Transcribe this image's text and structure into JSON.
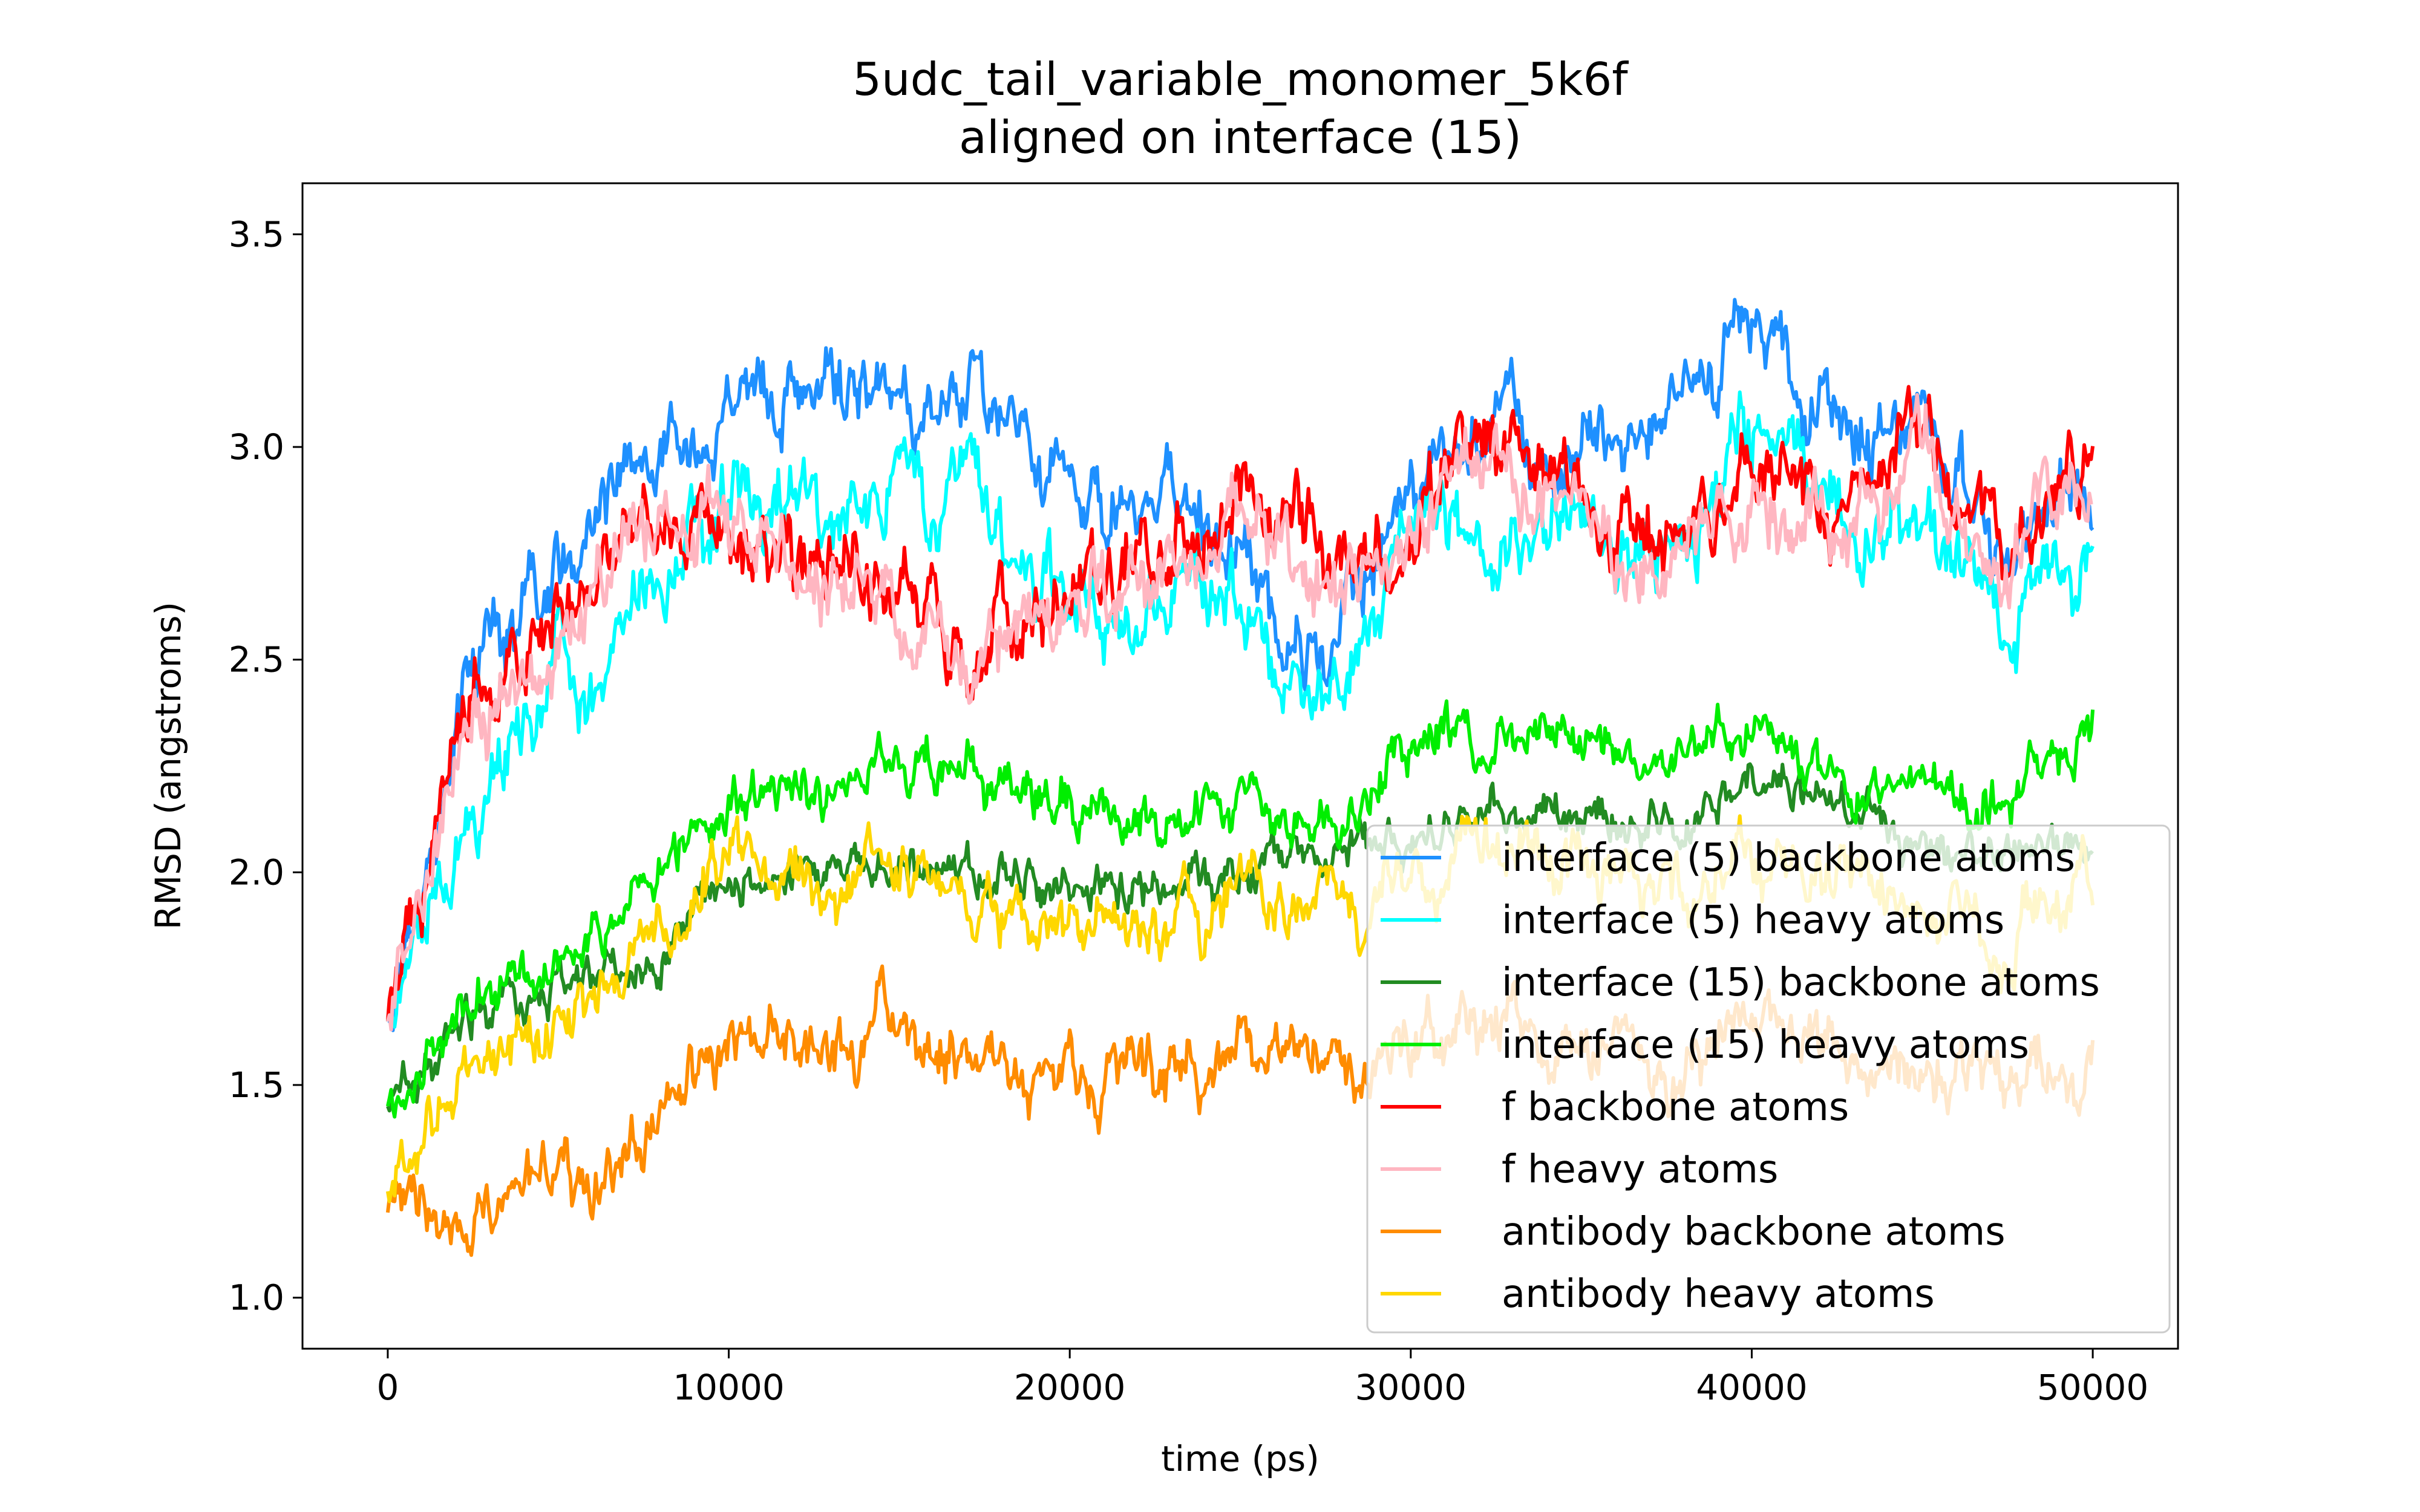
{
  "chart_data": {
    "type": "line",
    "title": [
      "5udc_tail_variable_monomer_5k6f",
      "aligned on interface (15)"
    ],
    "xlabel": "time (ps)",
    "ylabel": "RMSD (angstroms)",
    "xlim": [
      -2500,
      52500
    ],
    "ylim": [
      0.88,
      3.62
    ],
    "xticks": [
      0,
      10000,
      20000,
      30000,
      40000,
      50000
    ],
    "yticks": [
      1.0,
      1.5,
      2.0,
      2.5,
      3.0,
      3.5
    ],
    "ytick_labels": [
      "1.0",
      "1.5",
      "2.0",
      "2.5",
      "3.0",
      "3.5"
    ],
    "grid": false,
    "legend_position": "lower-right",
    "x": [
      0,
      2500,
      5000,
      7500,
      10000,
      12500,
      15000,
      17500,
      20000,
      22500,
      25000,
      27500,
      30000,
      32500,
      35000,
      37500,
      40000,
      42500,
      45000,
      47500,
      50000
    ],
    "series": [
      {
        "name": "interface (5) backbone atoms",
        "color": "#1E90FF",
        "noise": 0.09,
        "values": [
          1.65,
          2.5,
          2.7,
          2.95,
          3.15,
          3.1,
          3.1,
          3.15,
          2.95,
          2.85,
          2.75,
          2.45,
          2.95,
          3.05,
          3.0,
          3.05,
          3.3,
          3.05,
          3.0,
          2.8,
          2.9
        ]
      },
      {
        "name": "interface (5) heavy atoms",
        "color": "#00FFFF",
        "noise": 0.09,
        "values": [
          1.65,
          2.15,
          2.45,
          2.6,
          2.85,
          2.85,
          2.9,
          2.85,
          2.65,
          2.65,
          2.65,
          2.4,
          2.75,
          2.8,
          2.8,
          2.75,
          3.05,
          2.85,
          2.8,
          2.65,
          2.7
        ]
      },
      {
        "name": "interface (15) backbone atoms",
        "color": "#228B22",
        "noise": 0.05,
        "values": [
          1.45,
          1.65,
          1.72,
          1.8,
          2.0,
          2.02,
          2.05,
          2.0,
          1.98,
          1.95,
          2.0,
          2.05,
          2.1,
          2.15,
          2.1,
          2.1,
          2.25,
          2.15,
          2.05,
          2.05,
          2.1
        ]
      },
      {
        "name": "interface (15) heavy atoms",
        "color": "#00EE00",
        "noise": 0.06,
        "values": [
          1.45,
          1.72,
          1.82,
          1.95,
          2.2,
          2.2,
          2.25,
          2.2,
          2.15,
          2.1,
          2.15,
          2.15,
          2.25,
          2.35,
          2.3,
          2.25,
          2.35,
          2.2,
          2.2,
          2.15,
          2.35
        ]
      },
      {
        "name": "f backbone atoms",
        "color": "#FF0000",
        "noise": 0.09,
        "values": [
          1.65,
          2.45,
          2.55,
          2.85,
          2.85,
          2.75,
          2.65,
          2.55,
          2.65,
          2.75,
          2.9,
          2.75,
          2.8,
          3.0,
          2.85,
          2.75,
          2.9,
          2.85,
          3.05,
          2.75,
          2.95
        ]
      },
      {
        "name": "f heavy atoms",
        "color": "#FFB6C1",
        "noise": 0.09,
        "values": [
          1.65,
          2.4,
          2.5,
          2.8,
          2.8,
          2.7,
          2.6,
          2.5,
          2.6,
          2.7,
          2.85,
          2.7,
          2.75,
          2.95,
          2.8,
          2.7,
          2.85,
          2.8,
          3.0,
          2.7,
          2.9
        ]
      },
      {
        "name": "antibody backbone atoms",
        "color": "#FF8C00",
        "noise": 0.07,
        "values": [
          1.2,
          1.15,
          1.25,
          1.4,
          1.65,
          1.6,
          1.65,
          1.55,
          1.55,
          1.5,
          1.6,
          1.55,
          1.6,
          1.65,
          1.55,
          1.55,
          1.65,
          1.6,
          1.55,
          1.5,
          1.55
        ]
      },
      {
        "name": "antibody heavy atoms",
        "color": "#FFD700",
        "noise": 0.07,
        "values": [
          1.25,
          1.55,
          1.65,
          1.8,
          2.05,
          1.95,
          2.0,
          1.95,
          1.9,
          1.85,
          1.95,
          1.9,
          1.95,
          2.05,
          2.0,
          1.95,
          2.05,
          2.0,
          1.95,
          1.85,
          2.0
        ]
      }
    ]
  }
}
